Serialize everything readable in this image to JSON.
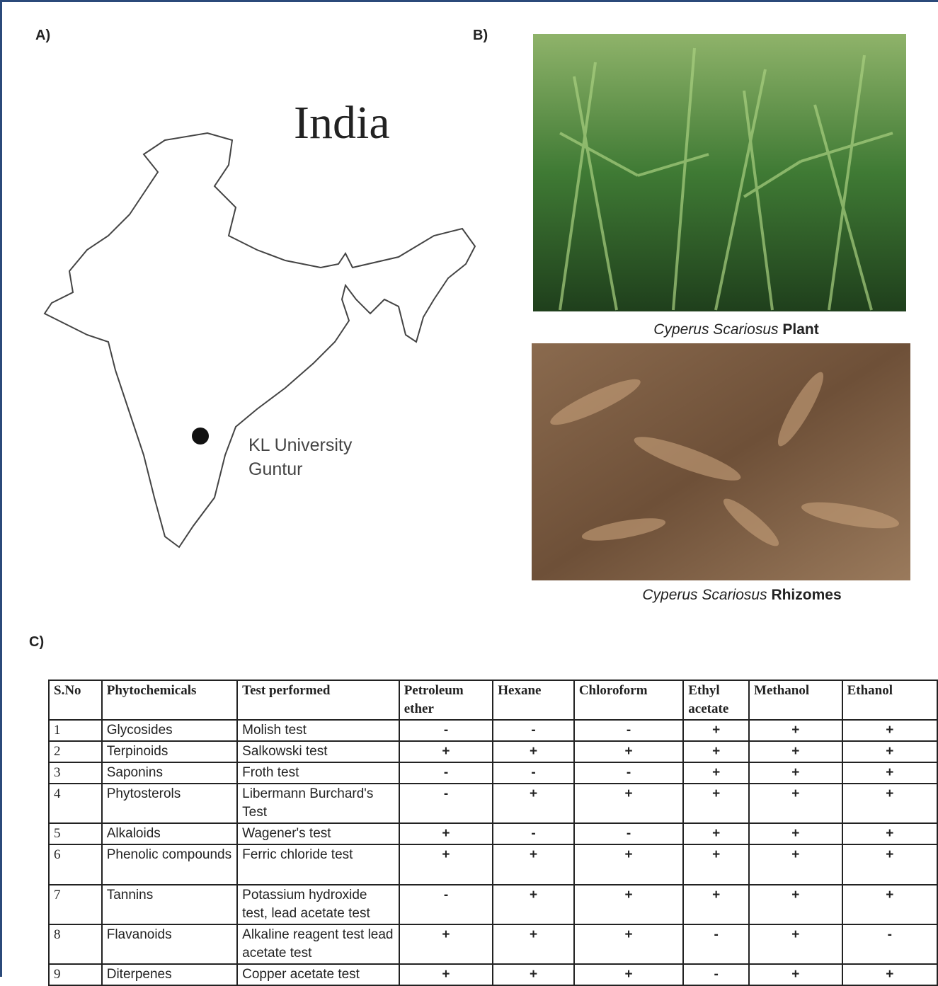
{
  "panels": {
    "a": "A)",
    "b": "B)",
    "c": "C)"
  },
  "map": {
    "title": "India",
    "location": [
      "KL University",
      "Guntur"
    ]
  },
  "photos": [
    {
      "species": "Cyperus Scariosus",
      "part": "Plant"
    },
    {
      "species": "Cyperus Scariosus",
      "part": "Rhizomes"
    }
  ],
  "table": {
    "header": [
      "S.No",
      "Phytochemicals",
      "Test performed",
      "Petroleum ether",
      "Hexane",
      "Chloroform",
      "Ethyl acetate",
      "Methanol",
      "Ethanol"
    ],
    "rows": [
      [
        "1",
        "Glycosides",
        "Molish test",
        "-",
        "-",
        "-",
        "+",
        "+",
        "+"
      ],
      [
        "2",
        "Terpinoids",
        "Salkowski test",
        "+",
        "+",
        "+",
        "+",
        "+",
        "+"
      ],
      [
        "3",
        "Saponins",
        "Froth test",
        "-",
        "-",
        "-",
        "+",
        "+",
        "+"
      ],
      [
        "4",
        "Phytosterols",
        "Libermann Burchard's Test",
        "-",
        "+",
        "+",
        "+",
        "+",
        "+"
      ],
      [
        "5",
        "Alkaloids",
        "Wagener's test",
        "+",
        "-",
        "-",
        "+",
        "+",
        "+"
      ],
      [
        "6",
        "Phenolic compounds",
        "Ferric chloride test",
        "+",
        "+",
        "+",
        "+",
        "+",
        "+"
      ],
      [
        "7",
        "Tannins",
        "Potassium hydroxide test, lead acetate test",
        "-",
        "+",
        "+",
        "+",
        "+",
        "+"
      ],
      [
        "8",
        "Flavanoids",
        "Alkaline reagent test lead acetate test",
        "+",
        "+",
        "+",
        "-",
        "+",
        "-"
      ],
      [
        "9",
        "Diterpenes",
        "Copper acetate test",
        "+",
        "+",
        "+",
        "-",
        "+",
        "+"
      ]
    ]
  }
}
